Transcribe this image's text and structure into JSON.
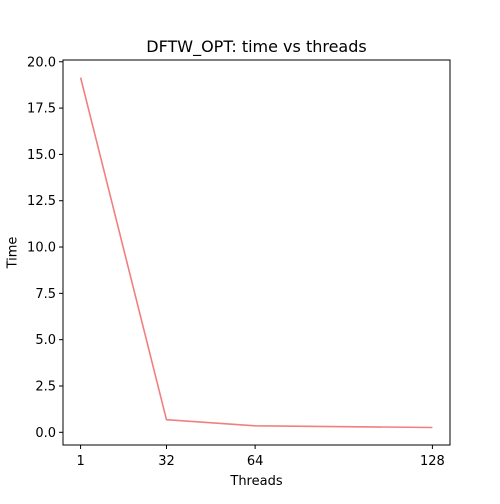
{
  "chart_data": {
    "type": "line",
    "title": "DFTW_OPT: time vs threads",
    "xlabel": "Threads",
    "ylabel": "Time",
    "x": [
      1,
      32,
      64,
      128
    ],
    "series": [
      {
        "values": [
          19.15,
          0.68,
          0.35,
          0.26
        ],
        "color": "#f08080"
      }
    ],
    "xticks": [
      1,
      32,
      64,
      128
    ],
    "xtick_labels": [
      "1",
      "32",
      "64",
      "128"
    ],
    "yticks": [
      0.0,
      2.5,
      5.0,
      7.5,
      10.0,
      12.5,
      15.0,
      17.5,
      20.0
    ],
    "ytick_labels": [
      "0.0",
      "2.5",
      "5.0",
      "7.5",
      "10.0",
      "12.5",
      "15.0",
      "17.5",
      "20.0"
    ],
    "xlim": [
      -5.35,
      134.35
    ],
    "ylim": [
      -0.685,
      20.095
    ],
    "grid": false,
    "legend": "none"
  }
}
